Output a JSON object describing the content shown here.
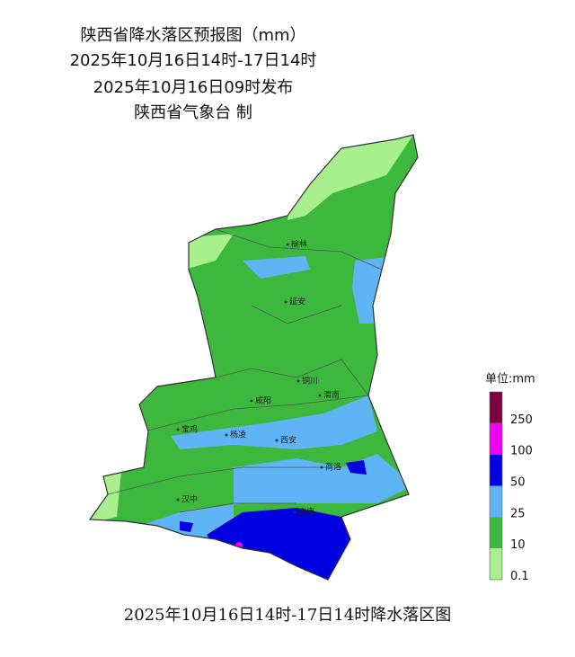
{
  "header": {
    "title": "陕西省降水落区预报图（mm）",
    "period": "2025年10月16日14时-17日14时",
    "issued": "2025年10月16日09时发布",
    "publisher": "陕西省气象台 制"
  },
  "cities": [
    "榆林",
    "延安",
    "铜川",
    "渭南",
    "咸阳",
    "宝鸡",
    "杨凌",
    "西安",
    "商洛",
    "汉中",
    "安康"
  ],
  "legend": {
    "unit": "单位:mm",
    "items": [
      {
        "label": "250",
        "color": "#7a0040"
      },
      {
        "label": "100",
        "color": "#f000f0"
      },
      {
        "label": "50",
        "color": "#0000e0"
      },
      {
        "label": "25",
        "color": "#5eb4f5"
      },
      {
        "label": "10",
        "color": "#3cb83c"
      },
      {
        "label": "0.1",
        "color": "#a8f08e"
      }
    ]
  },
  "caption": "2025年10月16日14时-17日14时降水落区图"
}
